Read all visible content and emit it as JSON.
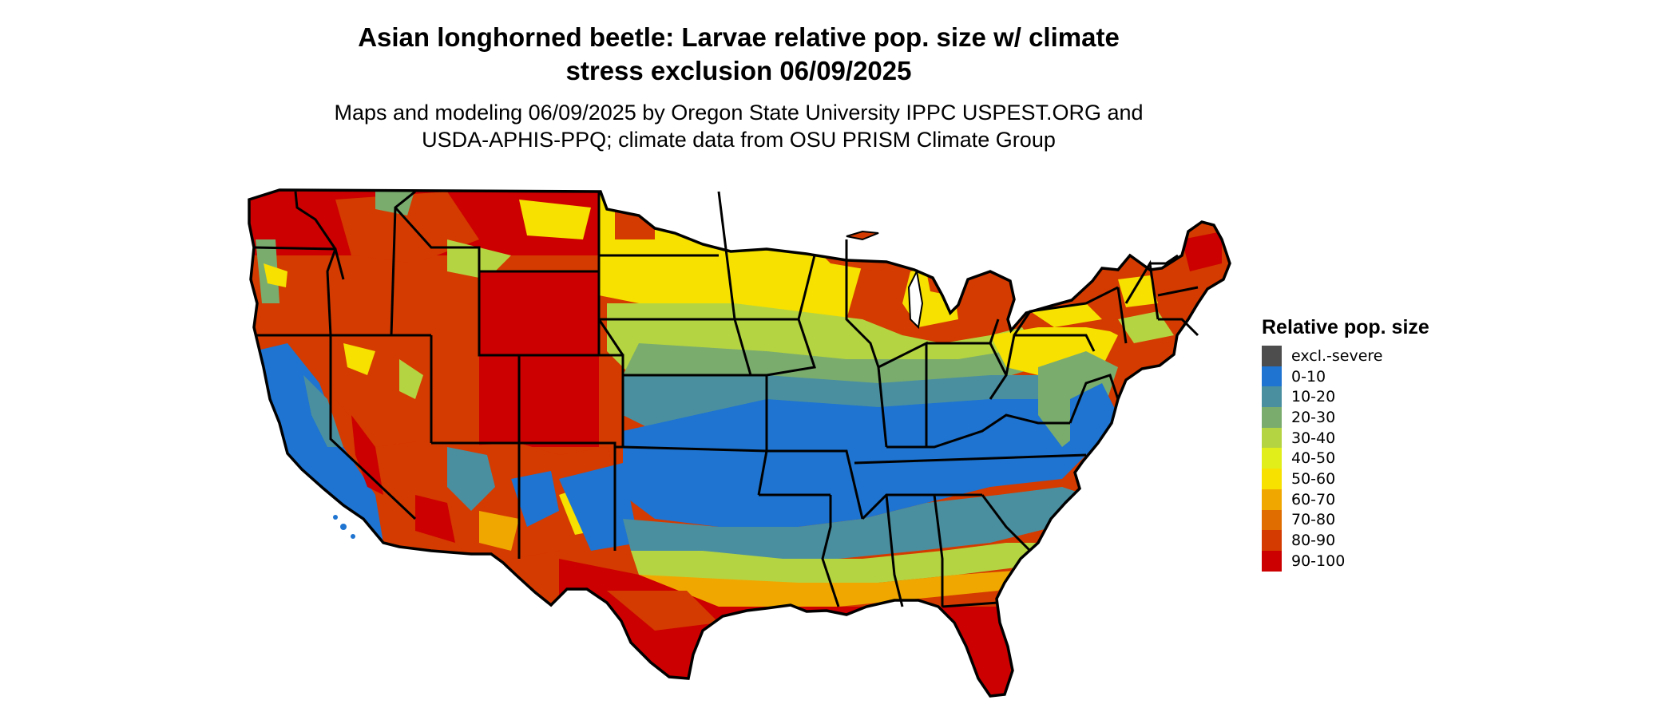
{
  "title_line1": "Asian longhorned beetle: Larvae relative pop. size w/ climate",
  "title_line2": "stress exclusion 06/09/2025",
  "subtitle_line1": "Maps and modeling 06/09/2025 by Oregon State University IPPC USPEST.ORG and",
  "subtitle_line2": "USDA-APHIS-PPQ; climate data from OSU PRISM Climate Group",
  "legend": {
    "title": "Relative pop. size",
    "items": [
      {
        "label": "excl.-severe",
        "color": "#4d4d4d"
      },
      {
        "label": "0-10",
        "color": "#1e74d0"
      },
      {
        "label": "10-20",
        "color": "#4a8fa0"
      },
      {
        "label": "20-30",
        "color": "#7aac6e"
      },
      {
        "label": "30-40",
        "color": "#b5d441"
      },
      {
        "label": "40-50",
        "color": "#e1ee1a"
      },
      {
        "label": "50-60",
        "color": "#f6e100"
      },
      {
        "label": "60-70",
        "color": "#f0a800"
      },
      {
        "label": "70-80",
        "color": "#e06d00"
      },
      {
        "label": "80-90",
        "color": "#d43b00"
      },
      {
        "label": "90-100",
        "color": "#cc0000"
      }
    ]
  }
}
